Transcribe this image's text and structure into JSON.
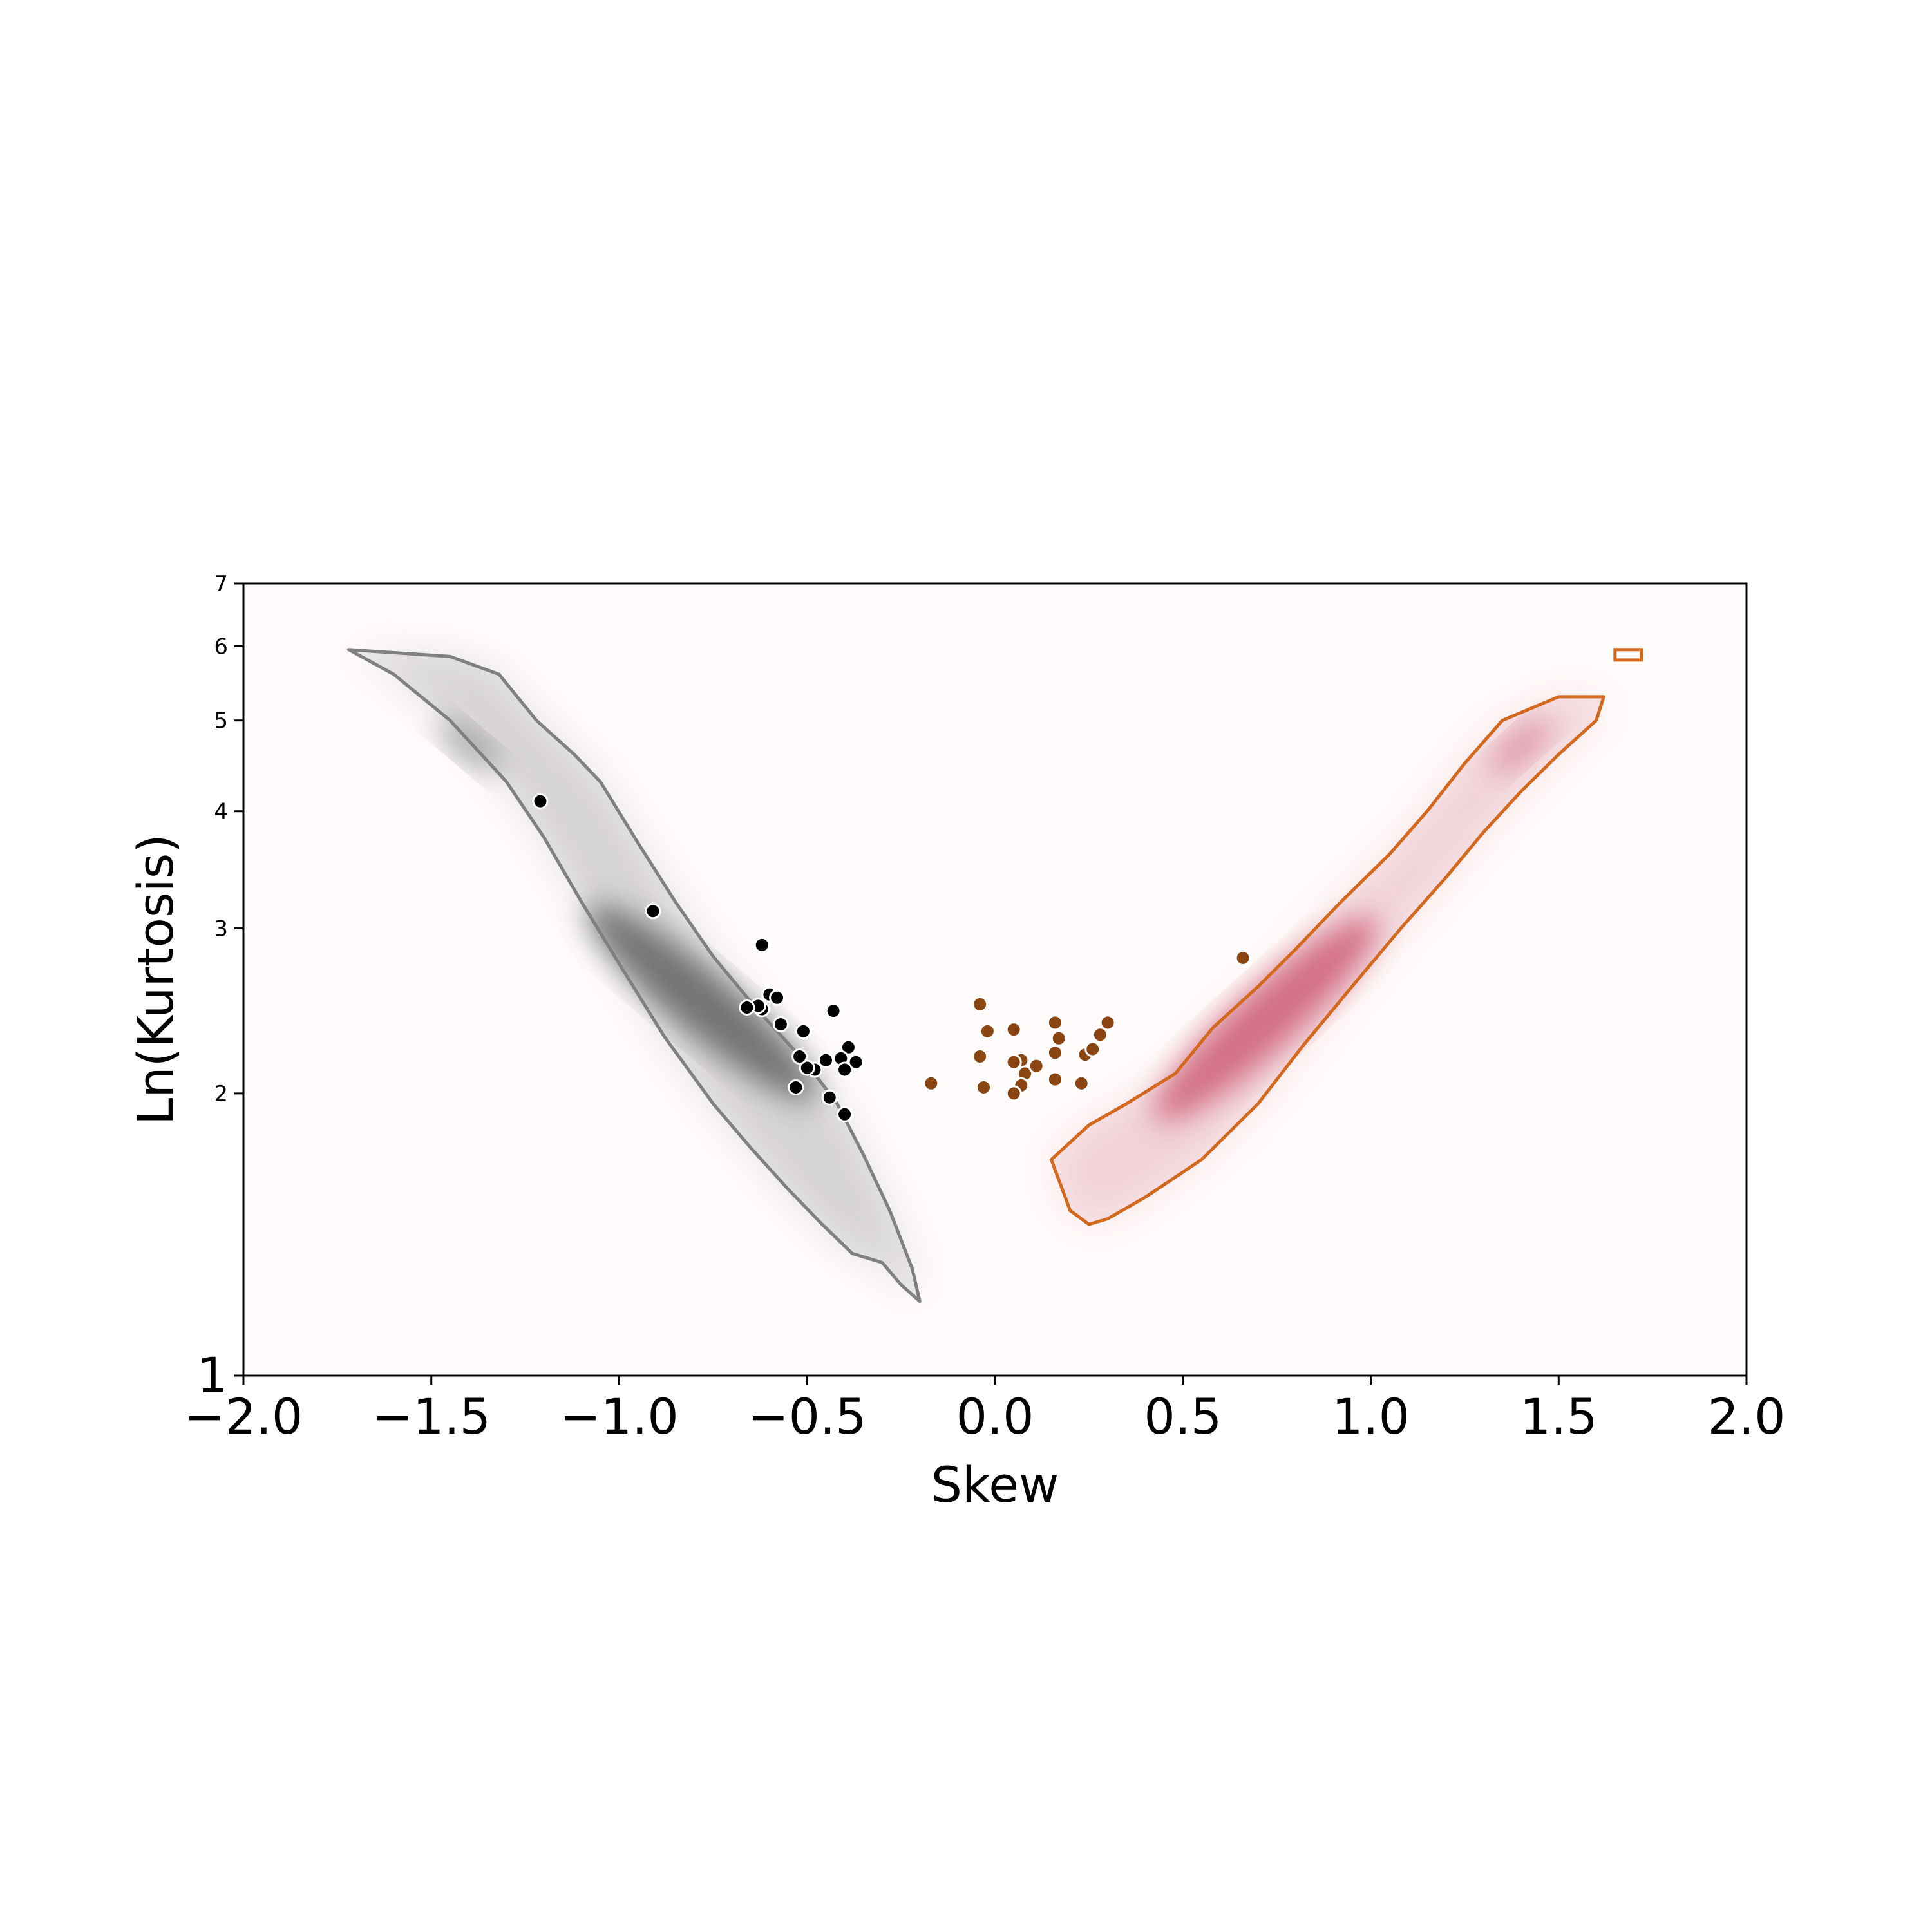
{
  "chart_data": {
    "type": "scatter",
    "title": "",
    "xlabel": "Skew",
    "ylabel": "Ln(Kurtosis)",
    "xlim": [
      -2.0,
      2.0
    ],
    "ylim": [
      1,
      7
    ],
    "yscale": "log",
    "grid": false,
    "legend": "none",
    "x_ticks": [
      "−2.0",
      "−1.5",
      "−1.0",
      "−0.5",
      "0.0",
      "0.5",
      "1.0",
      "1.5",
      "2.0"
    ],
    "x_tick_values": [
      -2.0,
      -1.5,
      -1.0,
      -0.5,
      0.0,
      0.5,
      1.0,
      1.5,
      2.0
    ],
    "y_ticks": [
      "1",
      "2",
      "3",
      "4",
      "5",
      "6",
      "7"
    ],
    "y_tick_values": [
      1,
      2,
      3,
      4,
      5,
      6,
      7
    ],
    "density_regions": [
      {
        "color_fill": "#555555",
        "color_contour": "#808080",
        "peak": {
          "x": -0.78,
          "y": 2.5
        },
        "secondary_peak": {
          "x": -1.4,
          "y": 4.7
        },
        "contour": [
          [
            -1.72,
            5.95
          ],
          [
            -1.45,
            5.85
          ],
          [
            -1.32,
            5.6
          ],
          [
            -1.22,
            5.0
          ],
          [
            -1.12,
            4.6
          ],
          [
            -1.05,
            4.3
          ],
          [
            -0.95,
            3.7
          ],
          [
            -0.85,
            3.2
          ],
          [
            -0.75,
            2.8
          ],
          [
            -0.63,
            2.45
          ],
          [
            -0.5,
            2.15
          ],
          [
            -0.42,
            1.95
          ],
          [
            -0.35,
            1.72
          ],
          [
            -0.28,
            1.5
          ],
          [
            -0.22,
            1.3
          ],
          [
            -0.2,
            1.2
          ],
          [
            -0.25,
            1.25
          ],
          [
            -0.3,
            1.32
          ],
          [
            -0.38,
            1.35
          ],
          [
            -0.46,
            1.45
          ],
          [
            -0.55,
            1.58
          ],
          [
            -0.65,
            1.75
          ],
          [
            -0.75,
            1.95
          ],
          [
            -0.88,
            2.3
          ],
          [
            -1.0,
            2.75
          ],
          [
            -1.1,
            3.2
          ],
          [
            -1.2,
            3.75
          ],
          [
            -1.3,
            4.3
          ],
          [
            -1.45,
            5.0
          ],
          [
            -1.6,
            5.6
          ],
          [
            -1.72,
            5.95
          ]
        ]
      },
      {
        "color_fill": "#c9506a",
        "color_contour": "#d2691e",
        "peak": {
          "x": 0.72,
          "y": 2.4
        },
        "secondary_peak": {
          "x": 1.4,
          "y": 4.7
        },
        "contour": [
          [
            0.15,
            1.7
          ],
          [
            0.25,
            1.85
          ],
          [
            0.35,
            1.95
          ],
          [
            0.48,
            2.1
          ],
          [
            0.58,
            2.35
          ],
          [
            0.7,
            2.6
          ],
          [
            0.8,
            2.85
          ],
          [
            0.92,
            3.2
          ],
          [
            1.05,
            3.6
          ],
          [
            1.15,
            4.0
          ],
          [
            1.25,
            4.5
          ],
          [
            1.35,
            5.0
          ],
          [
            1.5,
            5.3
          ],
          [
            1.62,
            5.3
          ],
          [
            1.6,
            5.0
          ],
          [
            1.5,
            4.6
          ],
          [
            1.4,
            4.2
          ],
          [
            1.3,
            3.8
          ],
          [
            1.2,
            3.4
          ],
          [
            1.08,
            3.0
          ],
          [
            0.95,
            2.6
          ],
          [
            0.82,
            2.25
          ],
          [
            0.7,
            1.95
          ],
          [
            0.55,
            1.7
          ],
          [
            0.4,
            1.55
          ],
          [
            0.3,
            1.47
          ],
          [
            0.25,
            1.45
          ],
          [
            0.2,
            1.5
          ],
          [
            0.15,
            1.7
          ]
        ],
        "extra_contour": [
          [
            1.65,
            5.95
          ],
          [
            1.72,
            5.95
          ],
          [
            1.72,
            5.8
          ],
          [
            1.65,
            5.8
          ]
        ]
      }
    ],
    "series": [
      {
        "color": "#000000",
        "points": [
          [
            -1.21,
            4.1
          ],
          [
            -0.91,
            3.13
          ],
          [
            -0.62,
            2.88
          ],
          [
            -0.6,
            2.55
          ],
          [
            -0.58,
            2.53
          ],
          [
            -0.62,
            2.46
          ],
          [
            -0.63,
            2.48
          ],
          [
            -0.66,
            2.47
          ],
          [
            -0.57,
            2.37
          ],
          [
            -0.51,
            2.33
          ],
          [
            -0.43,
            2.45
          ],
          [
            -0.39,
            2.24
          ],
          [
            -0.41,
            2.18
          ],
          [
            -0.37,
            2.16
          ],
          [
            -0.45,
            2.17
          ],
          [
            -0.48,
            2.12
          ],
          [
            -0.5,
            2.13
          ],
          [
            -0.52,
            2.19
          ],
          [
            -0.4,
            2.12
          ],
          [
            -0.53,
            2.03
          ],
          [
            -0.44,
            1.98
          ],
          [
            -0.4,
            1.9
          ]
        ]
      },
      {
        "color": "#8b4513",
        "points": [
          [
            -0.17,
            2.05
          ],
          [
            -0.04,
            2.49
          ],
          [
            -0.02,
            2.33
          ],
          [
            -0.04,
            2.19
          ],
          [
            -0.03,
            2.03
          ],
          [
            0.05,
            2.34
          ],
          [
            0.07,
            2.17
          ],
          [
            0.05,
            2.16
          ],
          [
            0.08,
            2.1
          ],
          [
            0.07,
            2.04
          ],
          [
            0.05,
            2.0
          ],
          [
            0.11,
            2.14
          ],
          [
            0.16,
            2.38
          ],
          [
            0.17,
            2.29
          ],
          [
            0.16,
            2.21
          ],
          [
            0.16,
            2.07
          ],
          [
            0.23,
            2.05
          ],
          [
            0.24,
            2.2
          ],
          [
            0.26,
            2.23
          ],
          [
            0.28,
            2.31
          ],
          [
            0.3,
            2.38
          ],
          [
            0.66,
            2.79
          ]
        ]
      }
    ]
  }
}
